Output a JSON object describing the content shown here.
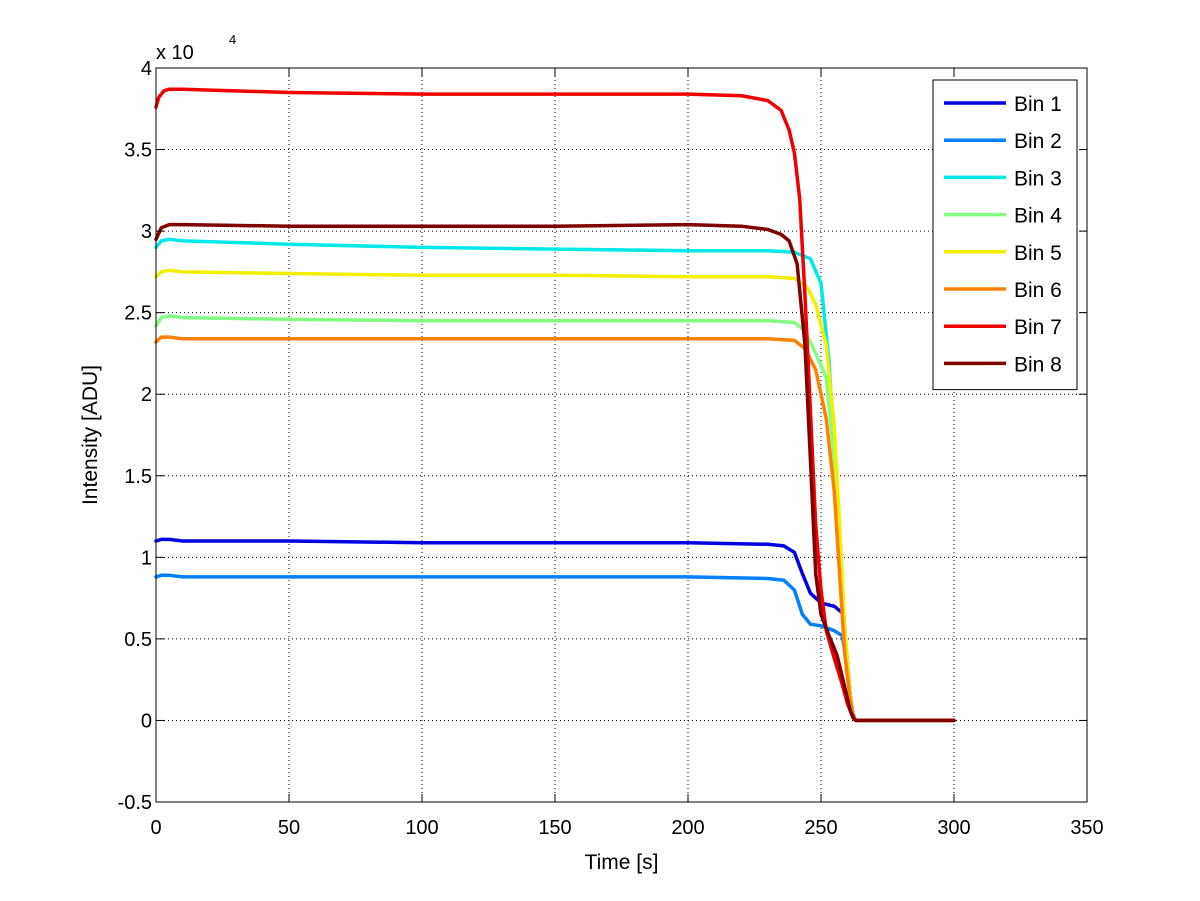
{
  "chart_data": {
    "type": "line",
    "title": "",
    "xlabel": "Time [s]",
    "ylabel": "Intensity [ADU]",
    "xlim": [
      0,
      350
    ],
    "ylim": [
      -0.5,
      4
    ],
    "xticks": [
      0,
      50,
      100,
      150,
      200,
      250,
      300,
      350
    ],
    "yticks": [
      -0.5,
      0,
      0.5,
      1,
      1.5,
      2,
      2.5,
      3,
      3.5,
      4
    ],
    "xtick_labels": [
      "0",
      "50",
      "100",
      "150",
      "200",
      "250",
      "300",
      "350"
    ],
    "ytick_labels": [
      "-0.5",
      "0",
      "0.5",
      "1",
      "1.5",
      "2",
      "2.5",
      "3",
      "3.5",
      "4"
    ],
    "y_multiplier": {
      "base": "x 10",
      "exponent": "4"
    },
    "grid": true,
    "legend_position": "top-right",
    "series": [
      {
        "name": "Bin 1",
        "color": "#0000e0",
        "x": [
          0,
          2,
          5,
          10,
          50,
          100,
          150,
          200,
          230,
          236,
          240,
          243,
          246,
          250,
          255,
          258,
          259,
          260,
          261,
          262,
          263,
          300
        ],
        "y": [
          1.1,
          1.11,
          1.11,
          1.1,
          1.1,
          1.09,
          1.09,
          1.09,
          1.08,
          1.07,
          1.03,
          0.9,
          0.78,
          0.72,
          0.7,
          0.66,
          0.52,
          0.35,
          0.15,
          0.04,
          0,
          0
        ]
      },
      {
        "name": "Bin 2",
        "color": "#0080ff",
        "x": [
          0,
          2,
          5,
          10,
          50,
          100,
          150,
          200,
          230,
          236,
          240,
          243,
          246,
          250,
          255,
          258,
          259,
          260,
          261,
          262,
          263,
          300
        ],
        "y": [
          0.88,
          0.89,
          0.89,
          0.88,
          0.88,
          0.88,
          0.88,
          0.88,
          0.87,
          0.86,
          0.8,
          0.65,
          0.59,
          0.58,
          0.55,
          0.52,
          0.42,
          0.3,
          0.15,
          0.04,
          0,
          0
        ]
      },
      {
        "name": "Bin 3",
        "color": "#00e8e8",
        "x": [
          0,
          2,
          5,
          10,
          50,
          100,
          150,
          200,
          230,
          240,
          246,
          250,
          253,
          256,
          258,
          260,
          261,
          262,
          263,
          300
        ],
        "y": [
          2.9,
          2.94,
          2.95,
          2.94,
          2.92,
          2.9,
          2.89,
          2.88,
          2.88,
          2.87,
          2.83,
          2.68,
          2.2,
          1.4,
          0.8,
          0.3,
          0.12,
          0.03,
          0,
          0
        ]
      },
      {
        "name": "Bin 4",
        "color": "#80ff80",
        "x": [
          0,
          2,
          5,
          10,
          50,
          100,
          150,
          200,
          230,
          240,
          244,
          248,
          252,
          255,
          257,
          259,
          261,
          262,
          263,
          300
        ],
        "y": [
          2.42,
          2.47,
          2.48,
          2.47,
          2.46,
          2.45,
          2.45,
          2.45,
          2.45,
          2.44,
          2.39,
          2.25,
          2.1,
          1.6,
          1.0,
          0.45,
          0.12,
          0.03,
          0,
          0
        ]
      },
      {
        "name": "Bin 5",
        "color": "#f0f000",
        "x": [
          0,
          2,
          5,
          10,
          50,
          100,
          150,
          200,
          230,
          240,
          245,
          248,
          252,
          255,
          257,
          259,
          261,
          262,
          263,
          300
        ],
        "y": [
          2.72,
          2.75,
          2.76,
          2.75,
          2.74,
          2.73,
          2.73,
          2.72,
          2.72,
          2.71,
          2.65,
          2.55,
          2.3,
          1.8,
          1.2,
          0.55,
          0.15,
          0.03,
          0,
          0
        ]
      },
      {
        "name": "Bin 6",
        "color": "#ff8000",
        "x": [
          0,
          2,
          5,
          10,
          50,
          100,
          150,
          200,
          230,
          240,
          244,
          248,
          252,
          255,
          257,
          259,
          261,
          262,
          263,
          300
        ],
        "y": [
          2.32,
          2.35,
          2.35,
          2.34,
          2.34,
          2.34,
          2.34,
          2.34,
          2.34,
          2.33,
          2.28,
          2.15,
          1.85,
          1.4,
          0.9,
          0.4,
          0.12,
          0.03,
          0,
          0
        ]
      },
      {
        "name": "Bin 7",
        "color": "#f00000",
        "x": [
          0,
          1,
          3,
          5,
          10,
          50,
          100,
          150,
          200,
          220,
          230,
          235,
          238,
          240,
          242,
          244,
          246,
          248,
          250,
          252,
          255,
          258,
          260,
          262,
          263,
          300
        ],
        "y": [
          3.76,
          3.82,
          3.86,
          3.87,
          3.87,
          3.85,
          3.84,
          3.84,
          3.84,
          3.83,
          3.8,
          3.74,
          3.62,
          3.48,
          3.2,
          2.6,
          1.9,
          1.2,
          0.8,
          0.55,
          0.38,
          0.22,
          0.1,
          0.02,
          0,
          0
        ]
      },
      {
        "name": "Bin 8",
        "color": "#800000",
        "x": [
          0,
          2,
          5,
          10,
          50,
          100,
          150,
          200,
          220,
          230,
          235,
          238,
          241,
          244,
          246,
          248,
          250,
          253,
          256,
          259,
          261,
          262,
          263,
          300
        ],
        "y": [
          2.95,
          3.02,
          3.04,
          3.04,
          3.03,
          3.03,
          3.03,
          3.04,
          3.03,
          3.01,
          2.98,
          2.94,
          2.8,
          2.3,
          1.6,
          0.9,
          0.65,
          0.52,
          0.4,
          0.2,
          0.06,
          0.02,
          0,
          0
        ]
      }
    ]
  }
}
